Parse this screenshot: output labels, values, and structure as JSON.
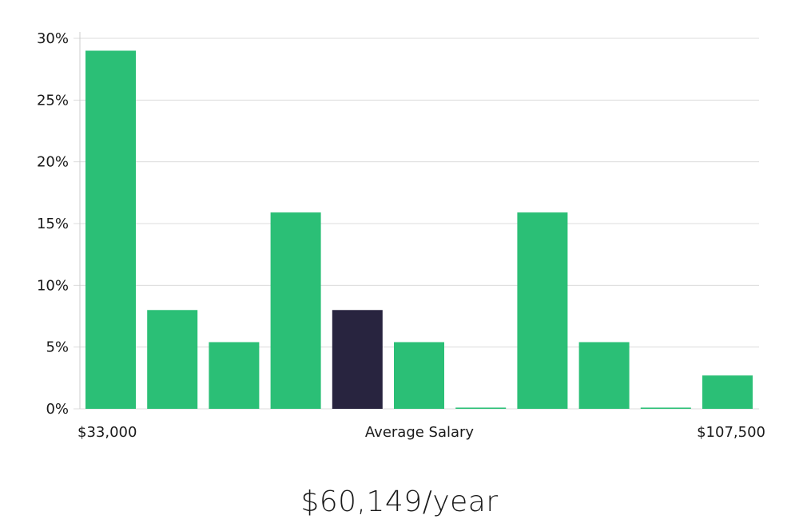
{
  "chart_data": {
    "type": "bar",
    "values": [
      29,
      8,
      5.4,
      15.9,
      8,
      5.4,
      0.1,
      15.9,
      5.4,
      0.1,
      2.7
    ],
    "highlight_index": 4,
    "ylim": [
      0,
      30
    ],
    "yticks": [
      0,
      5,
      10,
      15,
      20,
      25,
      30
    ],
    "ytick_labels": [
      "0%",
      "5%",
      "10%",
      "15%",
      "20%",
      "25%",
      "30%"
    ],
    "x_min_label": "$33,000",
    "x_center_label": "Average Salary",
    "x_max_label": "$107,500",
    "grid": true,
    "colors": {
      "bar": "#2bbf76",
      "highlight": "#28243f",
      "grid": "#dcdcdc",
      "axis": "#cccccc"
    }
  },
  "summary": {
    "salary": "$60,149/year"
  }
}
